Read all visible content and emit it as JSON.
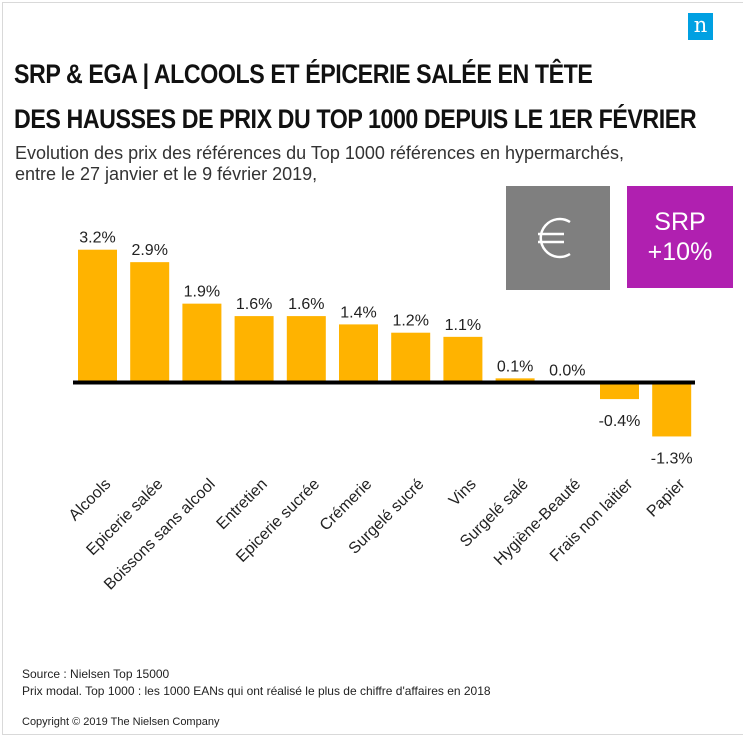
{
  "header": {
    "title_line1": "SRP & EGA | Alcools et épicerie salée en tête",
    "title_line2": "des hausses de prix du Top 1000 depuis le 1er février",
    "subtitle_line1": "Evolution des prix des références du Top 1000 références en hypermarchés,",
    "subtitle_line2": "entre le 27 janvier et le 9 février 2019,",
    "logo_letter": "n"
  },
  "badges": {
    "euro_icon": "euro-icon",
    "srp_line1": "SRP",
    "srp_line2": "+10%"
  },
  "chart_data": {
    "type": "bar",
    "categories": [
      "Alcools",
      "Epicerie salée",
      "Boissons sans alcool",
      "Entretien",
      "Epicerie sucrée",
      "Crémerie",
      "Surgelé sucré",
      "Vins",
      "Surgelé salé",
      "Hygiène-Beauté",
      "Frais non laitier",
      "Papier"
    ],
    "values": [
      3.2,
      2.9,
      1.9,
      1.6,
      1.6,
      1.4,
      1.2,
      1.1,
      0.1,
      0.0,
      -0.4,
      -1.3
    ],
    "labels": [
      "3.2%",
      "2.9%",
      "1.9%",
      "1.6%",
      "1.6%",
      "1.4%",
      "1.2%",
      "1.1%",
      "0.1%",
      "0.0%",
      "-0.4%",
      "-1.3%"
    ],
    "bar_color": "#ffb300",
    "axis_color": "#000000",
    "grid": false
  },
  "footer": {
    "source": "Source : Nielsen  Top 15000",
    "note": "Prix modal. Top 1000  : les 1000  EANs qui ont réalisé  le plus de chiffre  d'affaires  en 2018",
    "copyright": "Copyright © 2019 The Nielsen Company"
  },
  "colors": {
    "logo": "#00a0e2",
    "euro_box": "#7f7f7f",
    "srp_box": "#b020b0"
  }
}
